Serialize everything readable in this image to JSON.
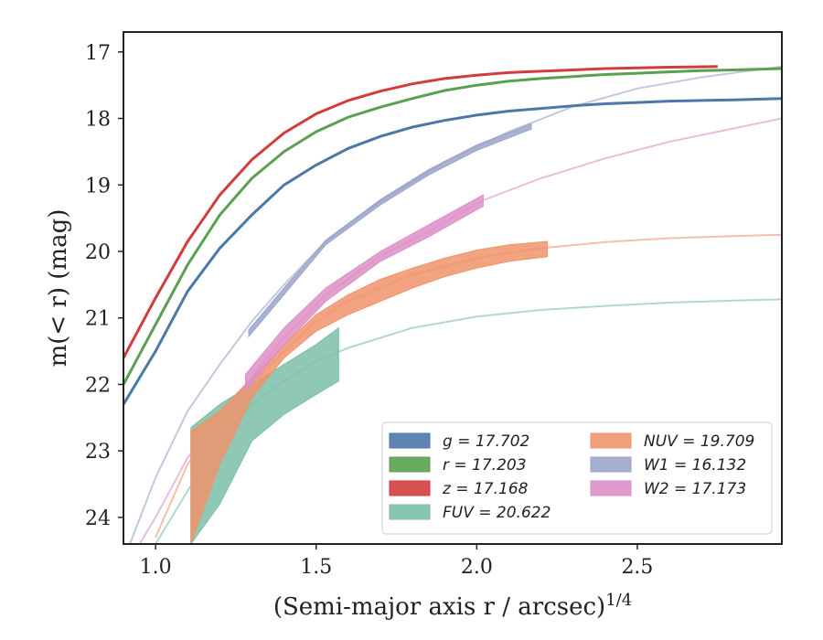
{
  "chart_data": {
    "type": "line",
    "xlabel": "(Semi-major axis r / arcsec)",
    "xlabel_sup": "1/4",
    "ylabel": "m(< r) (mag)",
    "xlim": [
      0.9,
      2.95
    ],
    "ylim": [
      24.4,
      16.7
    ],
    "y_inverted": true,
    "x_ticks": [
      "1.0",
      "1.5",
      "2.0",
      "2.5"
    ],
    "y_ticks": [
      "17",
      "18",
      "19",
      "20",
      "21",
      "22",
      "23",
      "24"
    ],
    "grid": false,
    "legend_position": "lower-right",
    "series": [
      {
        "key": "g",
        "name": "g = 17.702",
        "color": "#4c78a8",
        "style": "line",
        "x": [
          0.9,
          1.0,
          1.1,
          1.2,
          1.3,
          1.4,
          1.5,
          1.6,
          1.7,
          1.8,
          1.9,
          2.0,
          2.1,
          2.2,
          2.3,
          2.4,
          2.5,
          2.6,
          2.7,
          2.8,
          2.95
        ],
        "y": [
          22.3,
          21.5,
          20.6,
          19.95,
          19.45,
          19.0,
          18.7,
          18.45,
          18.27,
          18.13,
          18.03,
          17.95,
          17.89,
          17.85,
          17.81,
          17.78,
          17.76,
          17.74,
          17.73,
          17.72,
          17.7
        ]
      },
      {
        "key": "r",
        "name": "r = 17.203",
        "color": "#59a14f",
        "style": "line",
        "x": [
          0.9,
          1.0,
          1.1,
          1.2,
          1.3,
          1.4,
          1.5,
          1.6,
          1.7,
          1.8,
          1.9,
          2.0,
          2.1,
          2.2,
          2.3,
          2.4,
          2.5,
          2.6,
          2.7,
          2.8,
          2.95
        ],
        "y": [
          22.0,
          21.1,
          20.2,
          19.45,
          18.9,
          18.5,
          18.2,
          17.98,
          17.83,
          17.7,
          17.58,
          17.5,
          17.44,
          17.4,
          17.37,
          17.34,
          17.32,
          17.3,
          17.28,
          17.27,
          17.25
        ]
      },
      {
        "key": "z",
        "name": "z = 17.168",
        "color": "#d13d3b",
        "style": "line",
        "x": [
          0.9,
          1.0,
          1.1,
          1.2,
          1.3,
          1.4,
          1.5,
          1.6,
          1.7,
          1.8,
          1.9,
          2.0,
          2.1,
          2.2,
          2.3,
          2.4,
          2.5,
          2.6,
          2.75
        ],
        "y": [
          21.6,
          20.7,
          19.85,
          19.15,
          18.62,
          18.22,
          17.93,
          17.73,
          17.59,
          17.48,
          17.4,
          17.35,
          17.31,
          17.29,
          17.27,
          17.25,
          17.24,
          17.23,
          17.22
        ]
      },
      {
        "key": "fuv",
        "name": "FUV = 20.622",
        "color": "#7bbfa8",
        "style": "band",
        "x": [
          1.11,
          1.2,
          1.3,
          1.4,
          1.5,
          1.57
        ],
        "y_upper": [
          22.65,
          22.3,
          22.0,
          21.7,
          21.4,
          21.15
        ],
        "y_lower": [
          24.4,
          23.8,
          22.85,
          22.45,
          22.15,
          21.95
        ],
        "model_x": [
          1.0,
          1.1,
          1.2,
          1.3,
          1.4,
          1.5,
          1.6,
          1.8,
          2.0,
          2.2,
          2.4,
          2.6,
          2.8,
          2.95
        ],
        "model_y": [
          24.4,
          23.6,
          22.85,
          22.3,
          21.95,
          21.65,
          21.45,
          21.15,
          20.98,
          20.88,
          20.82,
          20.77,
          20.74,
          20.72
        ]
      },
      {
        "key": "nuv",
        "name": "NUV = 19.709",
        "color": "#f0946c",
        "style": "band",
        "x": [
          1.11,
          1.2,
          1.3,
          1.4,
          1.5,
          1.6,
          1.7,
          1.8,
          1.9,
          2.0,
          2.1,
          2.22
        ],
        "y_upper": [
          22.7,
          22.4,
          21.9,
          21.4,
          20.95,
          20.65,
          20.42,
          20.25,
          20.1,
          19.98,
          19.9,
          19.85
        ],
        "y_lower": [
          24.4,
          23.2,
          22.2,
          21.6,
          21.2,
          20.95,
          20.75,
          20.55,
          20.38,
          20.25,
          20.15,
          20.08
        ],
        "model_x": [
          1.0,
          1.1,
          1.2,
          1.3,
          1.4,
          1.5,
          1.6,
          1.8,
          2.0,
          2.2,
          2.4,
          2.6,
          2.8,
          2.95
        ],
        "model_y": [
          24.3,
          23.2,
          22.55,
          22.0,
          21.5,
          21.05,
          20.75,
          20.35,
          20.1,
          19.95,
          19.86,
          19.8,
          19.77,
          19.75
        ]
      },
      {
        "key": "w1",
        "name": "W1 = 16.132",
        "color": "#9aa5c9",
        "style": "band",
        "x": [
          1.29,
          1.4,
          1.53,
          1.7,
          1.85,
          2.0,
          2.17
        ],
        "y_upper": [
          21.18,
          20.55,
          19.83,
          19.22,
          18.77,
          18.4,
          18.08
        ],
        "y_lower": [
          21.28,
          20.65,
          19.9,
          19.3,
          18.85,
          18.48,
          18.16
        ],
        "model_x": [
          0.92,
          1.0,
          1.1,
          1.2,
          1.3,
          1.4,
          1.53,
          1.7,
          1.9,
          2.1,
          2.3,
          2.5,
          2.7,
          2.95
        ],
        "model_y": [
          24.4,
          23.4,
          22.4,
          21.7,
          21.05,
          20.5,
          19.85,
          19.25,
          18.65,
          18.2,
          17.82,
          17.55,
          17.38,
          17.22
        ]
      },
      {
        "key": "w2",
        "name": "W2 = 17.173",
        "color": "#dd8fc6",
        "style": "band",
        "x": [
          1.28,
          1.4,
          1.53,
          1.7,
          1.85,
          2.02
        ],
        "y_upper": [
          21.85,
          21.15,
          20.55,
          20.0,
          19.6,
          19.15
        ],
        "y_lower": [
          22.1,
          21.4,
          20.75,
          20.15,
          19.78,
          19.32
        ],
        "model_x": [
          0.95,
          1.0,
          1.1,
          1.2,
          1.28,
          1.4,
          1.53,
          1.7,
          1.85,
          2.02,
          2.2,
          2.4,
          2.6,
          2.8,
          2.95
        ],
        "model_y": [
          24.4,
          24.0,
          23.1,
          22.5,
          22.0,
          21.3,
          20.65,
          20.07,
          19.7,
          19.23,
          18.9,
          18.6,
          18.35,
          18.15,
          18.0
        ]
      }
    ],
    "legend": [
      {
        "key": "g",
        "label": "g = 17.702"
      },
      {
        "key": "nuv",
        "label": "NUV = 19.709"
      },
      {
        "key": "r",
        "label": "r = 17.203"
      },
      {
        "key": "w1",
        "label": "W1 = 16.132"
      },
      {
        "key": "z",
        "label": "z = 17.168"
      },
      {
        "key": "w2",
        "label": "W2 = 17.173"
      },
      {
        "key": "fuv",
        "label": "FUV = 20.622"
      }
    ]
  }
}
